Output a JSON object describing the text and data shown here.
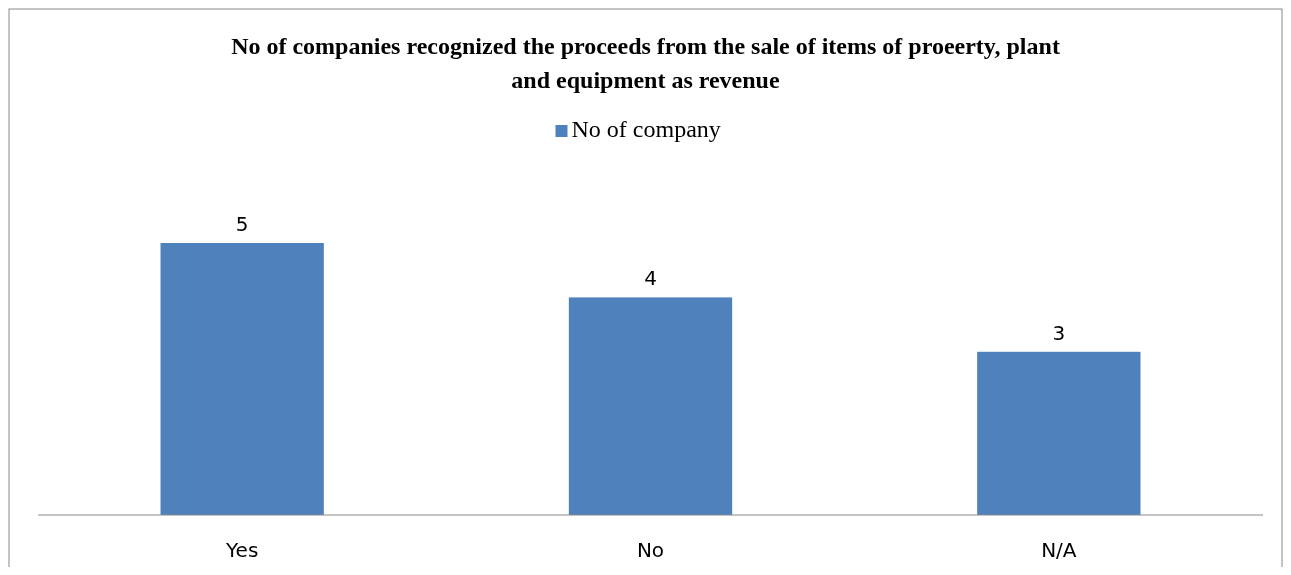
{
  "chart_data": {
    "type": "bar",
    "title": "No of companies recognized the proceeds from the sale of items of proeerty, plant and equipment as revenue",
    "categories": [
      "Yes",
      "No",
      "N/A"
    ],
    "series": [
      {
        "name": "No of company",
        "color": "#4f81bd",
        "values": [
          5,
          4,
          3
        ]
      }
    ],
    "data_labels": true,
    "legend": "top"
  }
}
